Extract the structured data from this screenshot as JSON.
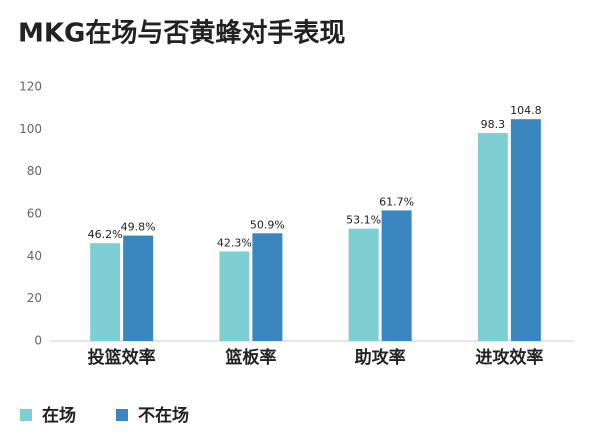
{
  "chart_data": {
    "type": "bar",
    "title": "MKG在场与否黄蜂对手表现",
    "categories": [
      "投篮效率",
      "篮板率",
      "助攻率",
      "进攻效率"
    ],
    "series": [
      {
        "name": "在场",
        "color": "#7ecfd4",
        "values": [
          46.2,
          42.3,
          53.1,
          98.3
        ],
        "value_labels": [
          "46.2%",
          "42.3%",
          "53.1%",
          "98.3"
        ]
      },
      {
        "name": "不在场",
        "color": "#3a86c0",
        "values": [
          49.8,
          50.9,
          61.7,
          104.8
        ],
        "value_labels": [
          "49.8%",
          "50.9%",
          "61.7%",
          "104.8"
        ]
      }
    ],
    "ylim": [
      0,
      120
    ],
    "yticks": [
      0,
      20,
      40,
      60,
      80,
      100,
      120
    ],
    "grid": false,
    "legend": "bottom-left"
  }
}
